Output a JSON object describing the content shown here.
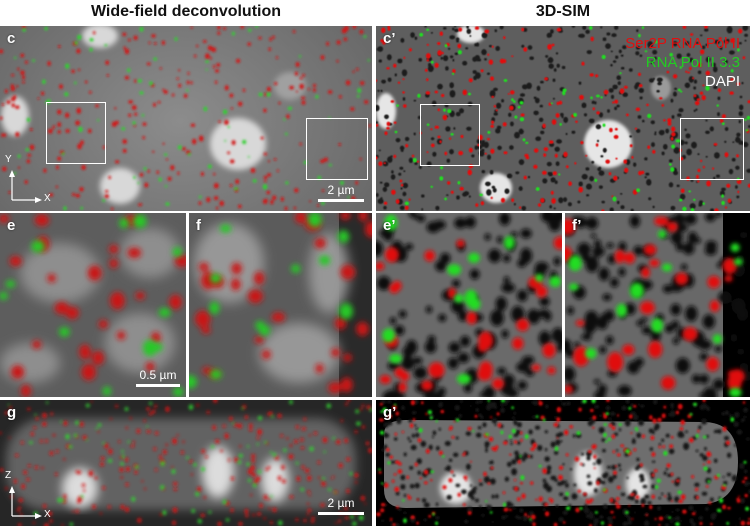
{
  "columns": {
    "left_title": "Wide-field deconvolution",
    "right_title": "3D-SIM"
  },
  "panels": {
    "c": "c",
    "c_prime": "c’",
    "e": "e",
    "f": "f",
    "e_prime": "e’",
    "f_prime": "f’",
    "g": "g",
    "g_prime": "g’"
  },
  "legend": [
    {
      "label": "Ser2P RNA Pol II",
      "color": "#e01010"
    },
    {
      "label": "RNA Pol II 3.3",
      "color": "#22cc22"
    },
    {
      "label": "DAPI",
      "color": "#ffffff"
    }
  ],
  "scalebars": {
    "c": "2 µm",
    "e": "0.5 µm",
    "g": "2 µm"
  },
  "axes": {
    "xy_vertical": "Y",
    "xy_horizontal": "X",
    "xz_vertical": "Z",
    "xz_horizontal": "X"
  },
  "colors": {
    "red_channel": "#e01010",
    "green_channel": "#22cc22",
    "dapi_gray": "#bfbfbf"
  }
}
